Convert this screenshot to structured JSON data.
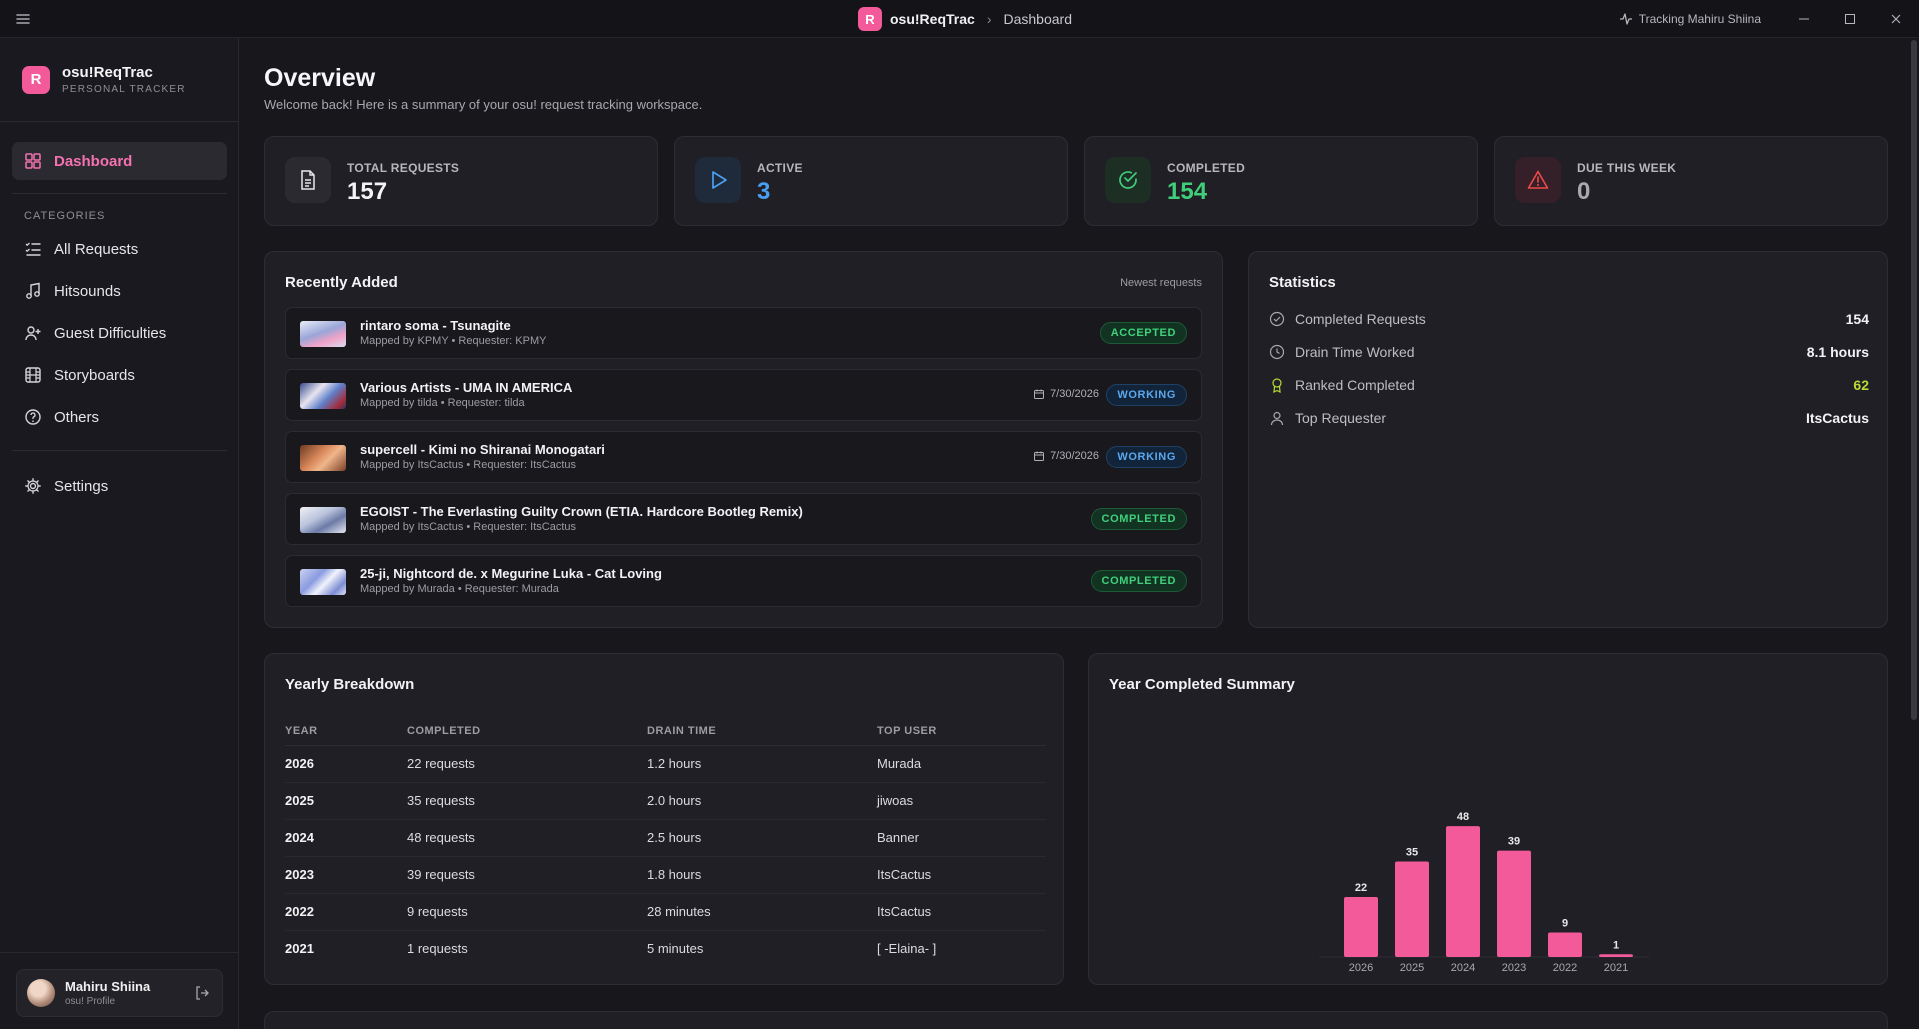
{
  "titlebar": {
    "app_name": "osu!ReqTrac",
    "logo_letter": "R",
    "breadcrumb_page": "Dashboard",
    "tracking_text": "Tracking Mahiru Shiina"
  },
  "sidebar": {
    "brand_title": "osu!ReqTrac",
    "brand_subtitle": "PERSONAL TRACKER",
    "dashboard_label": "Dashboard",
    "categories_label": "CATEGORIES",
    "items": [
      {
        "label": "All Requests",
        "icon": "list-icon"
      },
      {
        "label": "Hitsounds",
        "icon": "music-note-icon"
      },
      {
        "label": "Guest Difficulties",
        "icon": "user-plus-icon"
      },
      {
        "label": "Storyboards",
        "icon": "film-icon"
      },
      {
        "label": "Others",
        "icon": "help-circle-icon"
      }
    ],
    "settings_label": "Settings",
    "profile": {
      "name": "Mahiru Shiina",
      "subtitle": "osu! Profile"
    }
  },
  "header": {
    "title": "Overview",
    "subtitle": "Welcome back! Here is a summary of your osu! request tracking workspace."
  },
  "stats": [
    {
      "label": "TOTAL REQUESTS",
      "value": "157",
      "color": "#f3f3f5",
      "icon": "document-icon"
    },
    {
      "label": "ACTIVE",
      "value": "3",
      "color": "#4a9ff0",
      "icon": "play-icon"
    },
    {
      "label": "COMPLETED",
      "value": "154",
      "color": "#3fcf7a",
      "icon": "check-circle-icon"
    },
    {
      "label": "DUE THIS WEEK",
      "value": "0",
      "color": "#a9a8ae",
      "icon": "warning-icon"
    }
  ],
  "recent": {
    "title": "Recently Added",
    "hint": "Newest requests",
    "rows": [
      {
        "title": "rintaro soma - Tsunagite",
        "meta": "Mapped by KPMY • Requester: KPMY",
        "date": "",
        "status": "ACCEPTED"
      },
      {
        "title": "Various Artists - UMA IN AMERICA",
        "meta": "Mapped by tilda • Requester: tilda",
        "date": "7/30/2026",
        "status": "WORKING"
      },
      {
        "title": "supercell - Kimi no Shiranai Monogatari",
        "meta": "Mapped by ItsCactus • Requester: ItsCactus",
        "date": "7/30/2026",
        "status": "WORKING"
      },
      {
        "title": "EGOIST - The Everlasting Guilty Crown (ETIA. Hardcore Bootleg Remix)",
        "meta": "Mapped by ItsCactus • Requester: ItsCactus",
        "date": "",
        "status": "COMPLETED"
      },
      {
        "title": "25-ji, Nightcord de. x Megurine Luka - Cat Loving",
        "meta": "Mapped by Murada • Requester: Murada",
        "date": "",
        "status": "COMPLETED"
      }
    ]
  },
  "statistics": {
    "title": "Statistics",
    "rows": [
      {
        "label": "Completed Requests",
        "value": "154"
      },
      {
        "label": "Drain Time Worked",
        "value": "8.1 hours"
      },
      {
        "label": "Ranked Completed",
        "value": "62"
      },
      {
        "label": "Top Requester",
        "value": "ItsCactus"
      }
    ]
  },
  "yearly": {
    "title": "Yearly Breakdown",
    "headers": [
      "YEAR",
      "COMPLETED",
      "DRAIN TIME",
      "TOP USER"
    ],
    "rows": [
      [
        "2026",
        "22 requests",
        "1.2 hours",
        "Murada"
      ],
      [
        "2025",
        "35 requests",
        "2.0 hours",
        "jiwoas"
      ],
      [
        "2024",
        "48 requests",
        "2.5 hours",
        "Banner"
      ],
      [
        "2023",
        "39 requests",
        "1.8 hours",
        "ItsCactus"
      ],
      [
        "2022",
        "9 requests",
        "28 minutes",
        "ItsCactus"
      ],
      [
        "2021",
        "1 requests",
        "5 minutes",
        "[ -Elaina- ]"
      ]
    ]
  },
  "summary": {
    "title": "Year Completed Summary"
  },
  "chart_data": {
    "type": "bar",
    "categories": [
      "2026",
      "2025",
      "2024",
      "2023",
      "2022",
      "2021"
    ],
    "values": [
      22,
      35,
      48,
      39,
      9,
      1
    ],
    "bar_color": "#f25a9a",
    "ylim": [
      0,
      55
    ],
    "grid": false
  }
}
